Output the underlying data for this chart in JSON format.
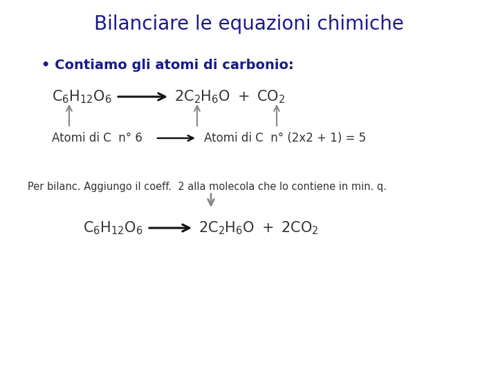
{
  "title": "Bilanciare le equazioni chimiche",
  "title_color": "#1a1a8c",
  "title_fontsize": 20,
  "bg_color": "#ffffff",
  "bullet_text": "• Contiamo gli atomi di carbonio:",
  "bullet_color": "#1a1a8c",
  "bullet_fontsize": 14,
  "eq_color": "#333333",
  "arrow_color": "#111111",
  "up_arrow_color": "#888888",
  "label_left": "Atomi di C  n° 6",
  "label_right": "Atomi di C  n° (2x2 + 1) = 5",
  "note": "Per bilanc. Aggiungo il coeff.  2 alla molecola che lo contiene in min. q.",
  "note_fontsize": 10.5,
  "label_fontsize": 12,
  "eq_fontsize": 15
}
